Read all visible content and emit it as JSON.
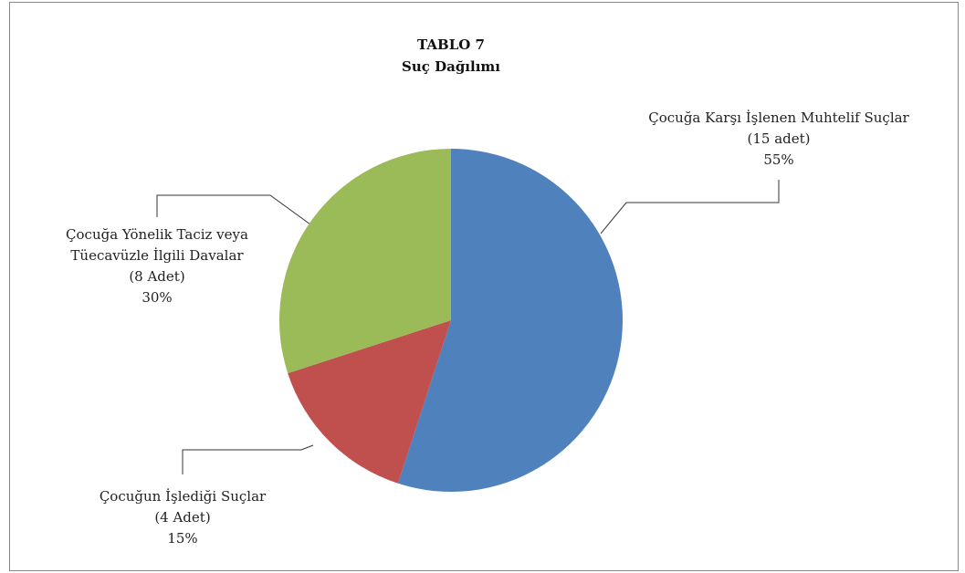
{
  "chart_data": {
    "type": "pie",
    "title": "TABLO 7",
    "subtitle": "Suç Dağılımı",
    "categories": [
      "Çocuğa Karşı İşlenen Muhtelif Suçlar",
      "Çocuğun İşlediği Suçlar",
      "Çocuğa Yönelik Taciz veya Tüecavüzle İlgili Davalar"
    ],
    "count_labels": [
      "(15 adet)",
      "(4 Adet)",
      "(8 Adet)"
    ],
    "values": [
      55,
      15,
      30
    ],
    "value_labels": [
      "55%",
      "15%",
      "30%"
    ],
    "colors": [
      "#4f81bd",
      "#c0504d",
      "#9bbb59"
    ]
  }
}
